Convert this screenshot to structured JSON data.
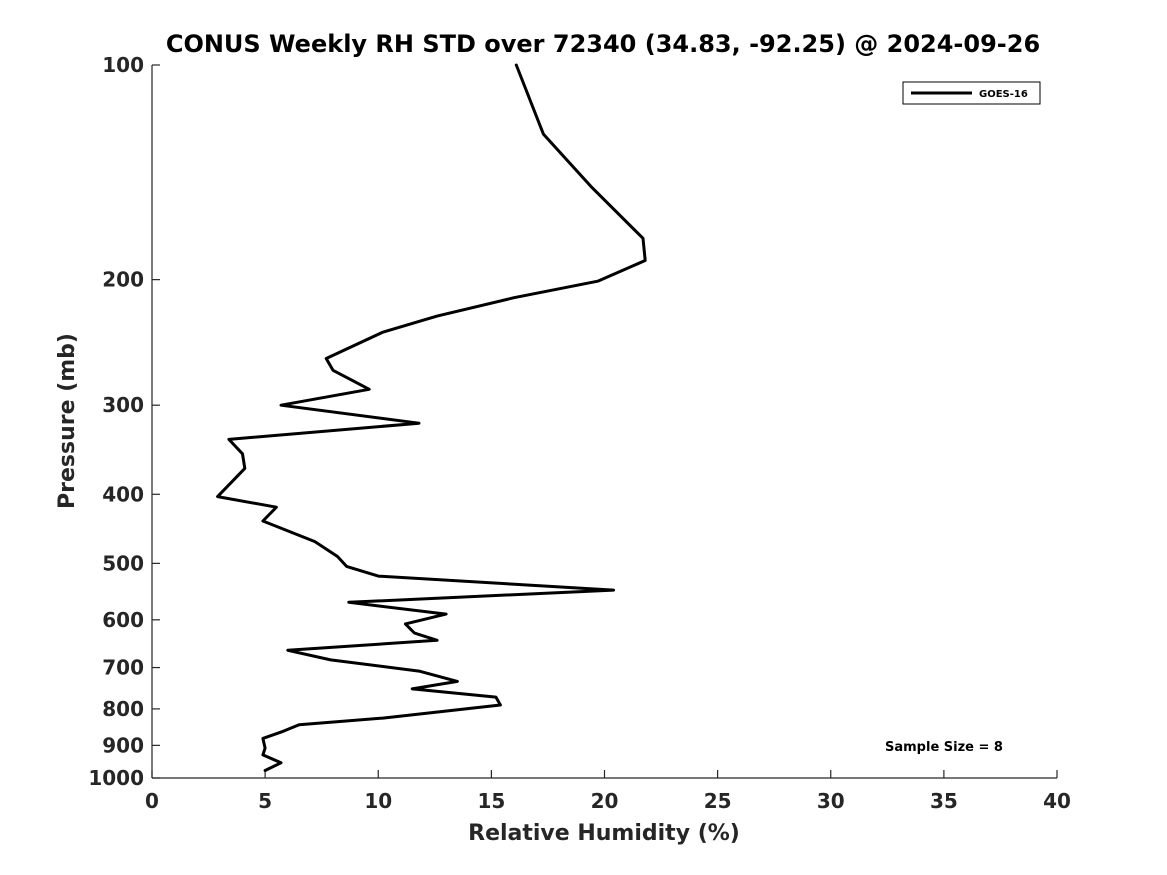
{
  "chart_data": {
    "type": "line",
    "title": "CONUS Weekly RH STD over 72340 (34.83, -92.25) @ 2024-09-26",
    "xlabel": "Relative Humidity (%)",
    "ylabel": "Pressure (mb)",
    "xlim": [
      0,
      40
    ],
    "ylim": [
      100,
      1000
    ],
    "y_scale": "log",
    "y_inverted": true,
    "grid": false,
    "legend_position": "top-right",
    "x_ticks": [
      0,
      5,
      10,
      15,
      20,
      25,
      30,
      35,
      40
    ],
    "x_tick_labels": [
      "0",
      "5",
      "10",
      "15",
      "20",
      "25",
      "30",
      "35",
      "40"
    ],
    "y_ticks": [
      100,
      200,
      300,
      400,
      500,
      600,
      700,
      800,
      900,
      1000
    ],
    "y_tick_labels": [
      "100",
      "200",
      "300",
      "400",
      "500",
      "600",
      "700",
      "800",
      "900",
      "1000"
    ],
    "annotation": "Sample Size = 8",
    "series": [
      {
        "name": "GOES-16",
        "color": "#000000",
        "points": [
          [
            16.1,
            100
          ],
          [
            17.3,
            125
          ],
          [
            19.4,
            148
          ],
          [
            21.7,
            175
          ],
          [
            21.8,
            188
          ],
          [
            19.7,
            201
          ],
          [
            16.0,
            212
          ],
          [
            12.6,
            225
          ],
          [
            10.2,
            237
          ],
          [
            7.7,
            258
          ],
          [
            8.0,
            268
          ],
          [
            9.6,
            285
          ],
          [
            5.7,
            300
          ],
          [
            11.8,
            318
          ],
          [
            3.4,
            335
          ],
          [
            4.0,
            351
          ],
          [
            4.1,
            368
          ],
          [
            2.9,
            403
          ],
          [
            5.5,
            417
          ],
          [
            4.9,
            436
          ],
          [
            7.2,
            466
          ],
          [
            8.2,
            489
          ],
          [
            8.6,
            505
          ],
          [
            10.0,
            521
          ],
          [
            20.4,
            545
          ],
          [
            8.7,
            567
          ],
          [
            13.0,
            589
          ],
          [
            11.2,
            608
          ],
          [
            11.6,
            626
          ],
          [
            12.6,
            641
          ],
          [
            6.0,
            662
          ],
          [
            7.9,
            683
          ],
          [
            11.8,
            708
          ],
          [
            13.5,
            732
          ],
          [
            11.5,
            750
          ],
          [
            15.2,
            770
          ],
          [
            15.4,
            790
          ],
          [
            10.2,
            824
          ],
          [
            6.5,
            842
          ],
          [
            5.8,
            860
          ],
          [
            4.9,
            880
          ],
          [
            5.0,
            908
          ],
          [
            4.9,
            928
          ],
          [
            5.7,
            952
          ],
          [
            5.0,
            976
          ]
        ]
      }
    ]
  }
}
